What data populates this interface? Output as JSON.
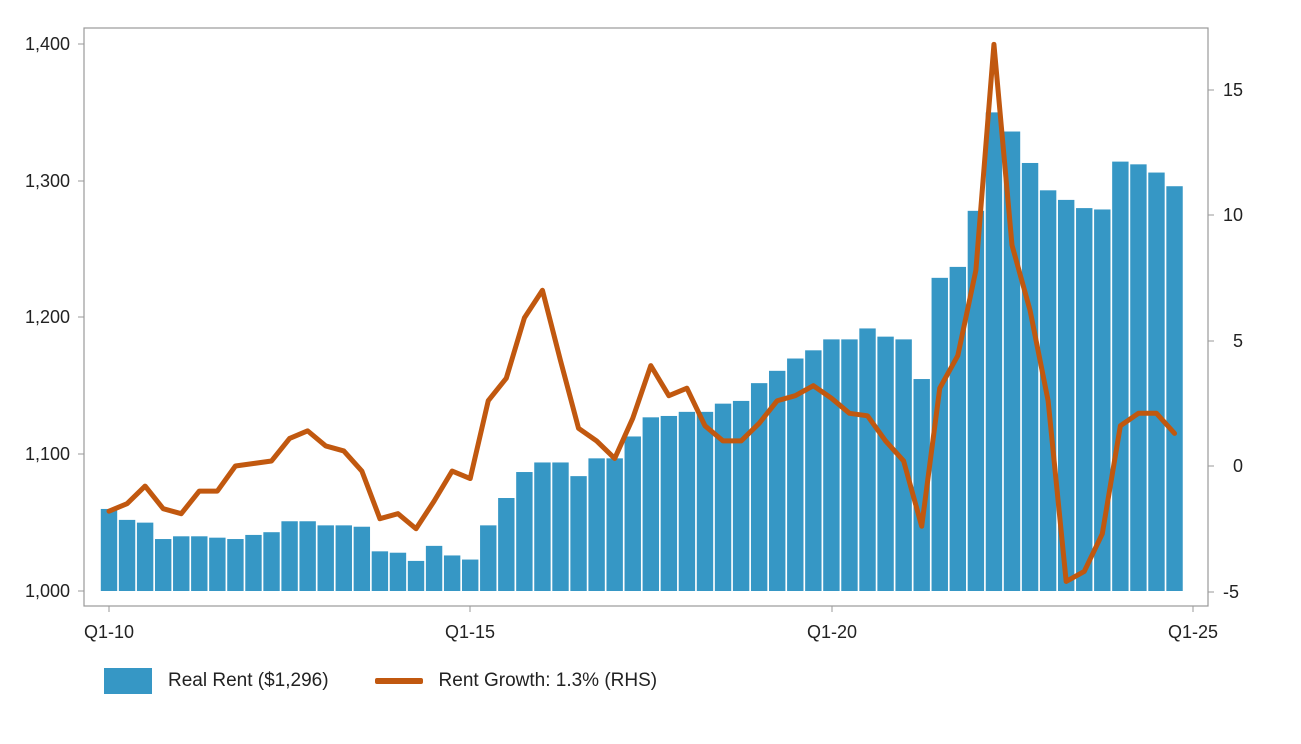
{
  "chart_data": {
    "type": "bar+line",
    "title": "",
    "x_tick_labels": [
      "Q1-10",
      "Q1-15",
      "Q1-20",
      "Q1-25"
    ],
    "y_left": {
      "range": [
        1000,
        1400
      ],
      "ticks": [
        "1,000",
        "1,100",
        "1,200",
        "1,300",
        "1,400"
      ]
    },
    "y_right": {
      "range": [
        -5,
        17
      ],
      "ticks": [
        "-5",
        "0",
        "5",
        "10",
        "15"
      ]
    },
    "colors": {
      "bar": "#3697c5",
      "line": "#c1580f",
      "axis": "#999999"
    },
    "legend_placement": "bottom-left",
    "grid": false,
    "series": [
      {
        "name": "Real Rent ($1,296)",
        "type": "bar",
        "axis": "left",
        "values": [
          1060,
          1052,
          1050,
          1038,
          1040,
          1040,
          1039,
          1038,
          1041,
          1043,
          1051,
          1051,
          1048,
          1048,
          1047,
          1029,
          1028,
          1022,
          1033,
          1026,
          1023,
          1048,
          1068,
          1087,
          1094,
          1094,
          1084,
          1097,
          1097,
          1113,
          1127,
          1128,
          1131,
          1131,
          1137,
          1139,
          1152,
          1161,
          1170,
          1176,
          1184,
          1184,
          1192,
          1186,
          1184,
          1155,
          1229,
          1237,
          1278,
          1350,
          1336,
          1313,
          1293,
          1286,
          1280,
          1279,
          1314,
          1312,
          1306,
          1296
        ]
      },
      {
        "name": "Rent Growth: 1.3% (RHS)",
        "type": "line",
        "axis": "right",
        "values": [
          -1.8,
          -1.5,
          -0.8,
          -1.7,
          -1.9,
          -1.0,
          -1.0,
          0.0,
          0.1,
          0.2,
          1.1,
          1.4,
          0.8,
          0.6,
          -0.2,
          -2.1,
          -1.9,
          -2.5,
          -1.4,
          -0.2,
          -0.5,
          2.6,
          3.5,
          5.9,
          7.0,
          4.2,
          1.5,
          1.0,
          0.3,
          1.9,
          4.0,
          2.8,
          3.1,
          1.6,
          1.0,
          1.0,
          1.7,
          2.6,
          2.8,
          3.2,
          2.7,
          2.1,
          2.0,
          1.0,
          0.2,
          -2.4,
          3.1,
          4.4,
          7.8,
          16.8,
          8.8,
          6.2,
          2.6,
          -4.6,
          -4.2,
          -2.7,
          1.6,
          2.1,
          2.1,
          1.3
        ]
      }
    ]
  },
  "legend": {
    "bar_label": "Real Rent ($1,296)",
    "line_label": "Rent Growth: 1.3% (RHS)"
  }
}
